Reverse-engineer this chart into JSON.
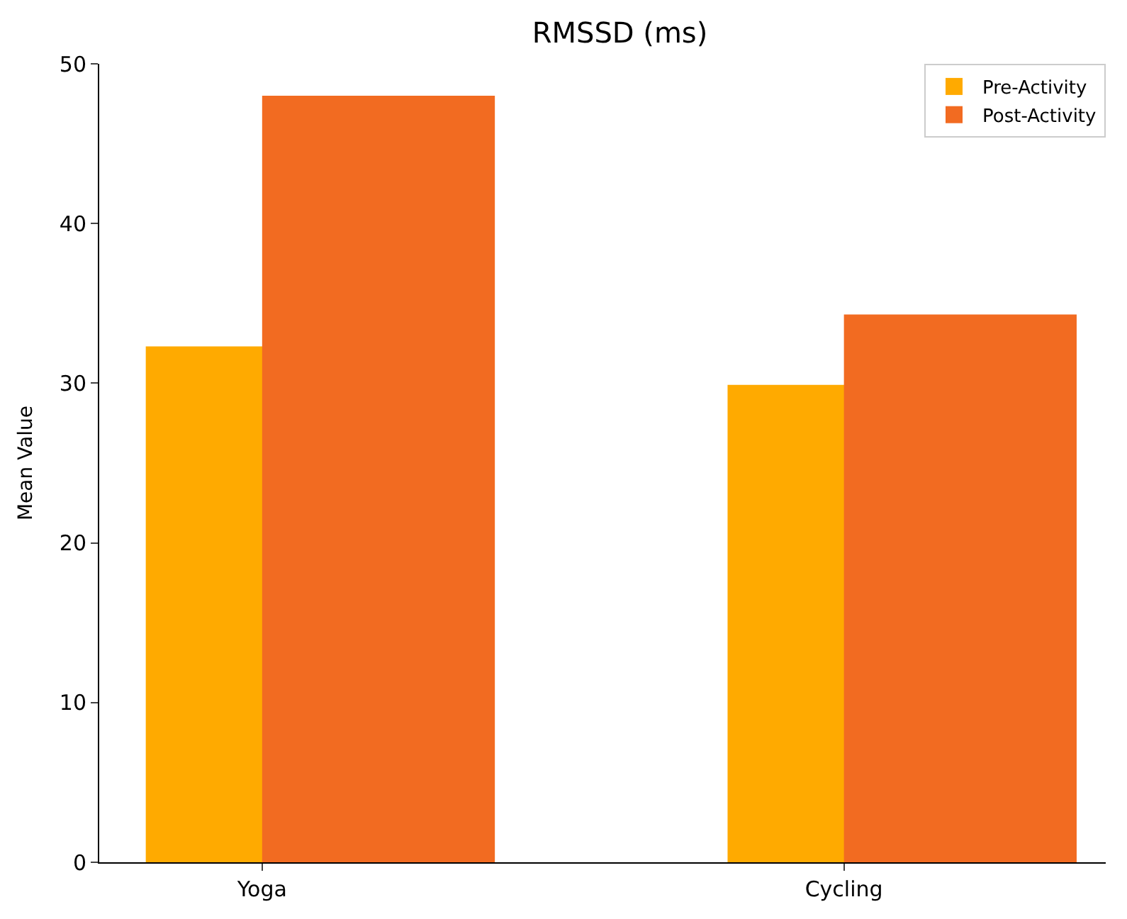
{
  "chart_data": {
    "type": "bar",
    "title": "RMSSD (ms)",
    "ylabel": "Mean Value",
    "categories": [
      "Yoga",
      "Cycling"
    ],
    "series": [
      {
        "name": "Pre-Activity",
        "color": "#ffaa00",
        "values": [
          32.3,
          29.9
        ]
      },
      {
        "name": "Post-Activity",
        "color": "#f26b21",
        "values": [
          48.0,
          34.3
        ]
      }
    ],
    "ylim": [
      0,
      50
    ],
    "yticks": [
      0,
      10,
      20,
      30,
      40,
      50
    ],
    "legend": "top right"
  }
}
